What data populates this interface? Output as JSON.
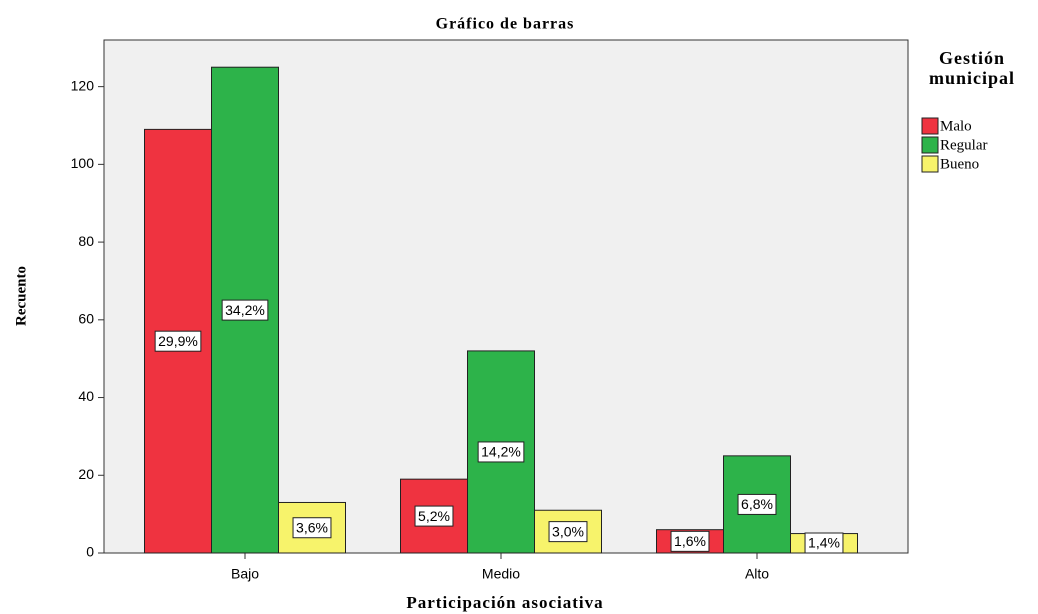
{
  "chart_data": {
    "type": "bar",
    "title": "Gráfico de barras",
    "x_label": "Participación asociativa",
    "y_label": "Recuento",
    "legend_title": "Gestión municipal",
    "categories": [
      "Bajo",
      "Medio",
      "Alto"
    ],
    "series": [
      {
        "name": "Malo",
        "color": "#ef3340",
        "values": [
          109,
          19,
          6
        ],
        "percent_labels": [
          "29,9%",
          "5,2%",
          "1,6%"
        ]
      },
      {
        "name": "Regular",
        "color": "#2db34a",
        "values": [
          125,
          52,
          25
        ],
        "percent_labels": [
          "34,2%",
          "14,2%",
          "6,8%"
        ]
      },
      {
        "name": "Bueno",
        "color": "#f7f36b",
        "values": [
          13,
          11,
          5
        ],
        "percent_labels": [
          "3,6%",
          "3,0%",
          "1,4%"
        ]
      }
    ],
    "ylim": [
      0,
      132
    ],
    "yticks": [
      0,
      20,
      40,
      60,
      80,
      100,
      120
    ],
    "legend": "right"
  }
}
